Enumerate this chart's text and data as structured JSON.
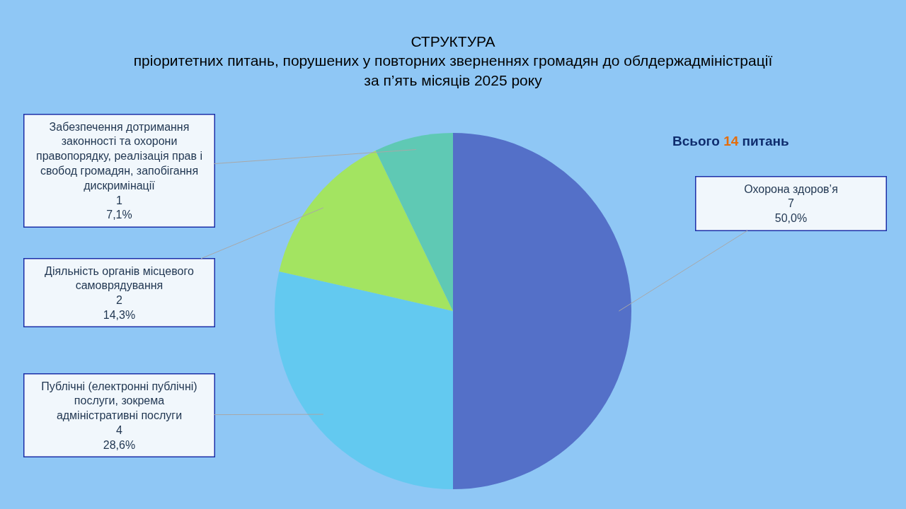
{
  "chart_data": {
    "type": "pie",
    "title": "СТРУКТУРА\nпріоритетних питань, порушених у повторних зверненнях громадян до облдержадміністрації\nза п’ять місяців 2025 року",
    "categories": [
      "Охорона здоров’я",
      "Публічні (електронні публічні) послуги, зокрема адміністративні послуги",
      "Діяльність органів місцевого самоврядування",
      "Забезпечення дотримання законності та охорони правопорядку, реалізація прав і свобод громадян, запобігання дискримінації"
    ],
    "values": [
      7,
      4,
      2,
      1
    ],
    "value_labels": [
      "7\n50,0%",
      "4\n28,6%",
      "2\n14,3%",
      "1\n7,1%"
    ],
    "colors": [
      "#5470c8",
      "#63c9f0",
      "#a3e461",
      "#5fc9b4"
    ],
    "annotations": [
      "Всього 14 питань"
    ]
  }
}
